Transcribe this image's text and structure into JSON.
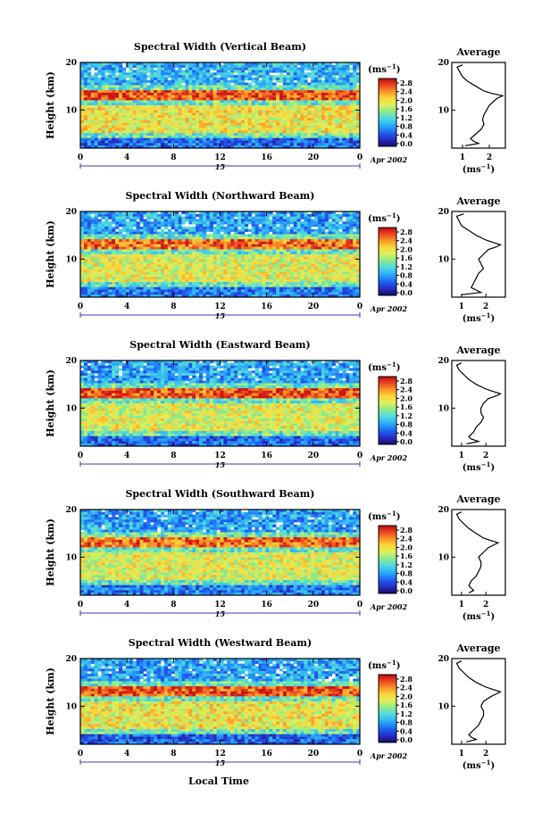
{
  "figure": {
    "x_axis_title": "Local Time",
    "date_label": "Apr 2002",
    "day_label": "15",
    "y_axis_title": "Height (km)",
    "average_title": "Average",
    "units": "(ms",
    "units_exp": "−1",
    "units_close": ")",
    "colorbar_ticks": [
      "2.8",
      "2.4",
      "2.0",
      "1.6",
      "1.2",
      "0.8",
      "0.4",
      "0.0"
    ]
  },
  "chart_data": [
    {
      "type": "heatmap",
      "title": "Spectral Width (Vertical Beam)",
      "xlabel": "",
      "ylabel": "Height (km)",
      "x_ticks": [
        "0",
        "4",
        "8",
        "12",
        "16",
        "20",
        "0"
      ],
      "xlim": [
        0,
        24
      ],
      "ylim": [
        2,
        20
      ],
      "y_ticks": [
        "10",
        "20"
      ],
      "colorbar": {
        "label": "(ms-1)",
        "range": [
          0.0,
          3.0
        ],
        "ticks": [
          0.0,
          0.4,
          0.8,
          1.2,
          1.6,
          2.0,
          2.4,
          2.8
        ]
      },
      "layers": [
        {
          "height_range_km": [
            12,
            14
          ],
          "value_ms": 2.7
        },
        {
          "height_range_km": [
            5,
            11
          ],
          "value_ms": 2.0
        },
        {
          "height_range_km": [
            2,
            4
          ],
          "value_ms": 0.6
        },
        {
          "height_range_km": [
            15,
            20
          ],
          "value_ms": 1.0
        }
      ],
      "profile": {
        "title": "Average",
        "xlabel": "(ms-1)",
        "x_ticks": [
          "1",
          "2"
        ],
        "xlim": [
          0.6,
          2.6
        ],
        "ylim": [
          2,
          20
        ],
        "height": [
          2.5,
          3,
          3.5,
          4,
          5,
          6,
          7,
          8,
          9,
          10,
          11,
          12,
          12.5,
          13,
          13.5,
          14,
          15,
          16,
          17,
          18,
          19,
          19.5
        ],
        "width": [
          1.1,
          1.6,
          1.4,
          1.3,
          1.5,
          1.7,
          1.8,
          1.75,
          1.8,
          1.9,
          2.0,
          2.2,
          2.3,
          2.5,
          2.1,
          1.8,
          1.5,
          1.2,
          1.0,
          0.9,
          0.8,
          1.0
        ]
      }
    },
    {
      "type": "heatmap",
      "title": "Spectral Width (Northward Beam)",
      "xlabel": "",
      "ylabel": "Height (km)",
      "x_ticks": [
        "0",
        "4",
        "8",
        "12",
        "16",
        "20",
        "0"
      ],
      "xlim": [
        0,
        24
      ],
      "ylim": [
        2,
        20
      ],
      "y_ticks": [
        "10",
        "20"
      ],
      "colorbar": {
        "label": "(ms-1)",
        "range": [
          0.0,
          3.0
        ],
        "ticks": [
          0.0,
          0.4,
          0.8,
          1.2,
          1.6,
          2.0,
          2.4,
          2.8
        ]
      },
      "layers": [
        {
          "height_range_km": [
            12,
            14
          ],
          "value_ms": 2.6
        },
        {
          "height_range_km": [
            5,
            11
          ],
          "value_ms": 1.9
        },
        {
          "height_range_km": [
            2,
            4
          ],
          "value_ms": 0.7
        },
        {
          "height_range_km": [
            15,
            20
          ],
          "value_ms": 0.9
        }
      ],
      "profile": {
        "title": "Average",
        "xlabel": "(ms-1)",
        "x_ticks": [
          "1",
          "2"
        ],
        "xlim": [
          0.6,
          2.8
        ],
        "ylim": [
          2,
          20
        ],
        "height": [
          2.5,
          3,
          3.5,
          4,
          5,
          6,
          7,
          8,
          9,
          10,
          11,
          12,
          12.5,
          13,
          13.5,
          14,
          15,
          16,
          17,
          18,
          19,
          19.5
        ],
        "width": [
          1.0,
          1.8,
          1.6,
          1.4,
          1.5,
          1.6,
          1.7,
          1.9,
          1.8,
          1.7,
          1.9,
          2.1,
          2.4,
          2.6,
          2.3,
          2.0,
          1.6,
          1.3,
          1.0,
          0.9,
          0.8,
          1.1
        ]
      }
    },
    {
      "type": "heatmap",
      "title": "Spectral Width (Eastward Beam)",
      "xlabel": "",
      "ylabel": "Height (km)",
      "x_ticks": [
        "0",
        "4",
        "8",
        "12",
        "16",
        "20",
        "0"
      ],
      "xlim": [
        0,
        24
      ],
      "ylim": [
        2,
        20
      ],
      "y_ticks": [
        "10",
        "20"
      ],
      "colorbar": {
        "label": "(ms-1)",
        "range": [
          0.0,
          3.0
        ],
        "ticks": [
          0.0,
          0.4,
          0.8,
          1.2,
          1.6,
          2.0,
          2.4,
          2.8
        ]
      },
      "layers": [
        {
          "height_range_km": [
            12,
            14
          ],
          "value_ms": 2.7
        },
        {
          "height_range_km": [
            5,
            11
          ],
          "value_ms": 1.9
        },
        {
          "height_range_km": [
            2,
            4
          ],
          "value_ms": 0.6
        },
        {
          "height_range_km": [
            15,
            20
          ],
          "value_ms": 0.9
        }
      ],
      "profile": {
        "title": "Average",
        "xlabel": "(ms-1)",
        "x_ticks": [
          "1",
          "2"
        ],
        "xlim": [
          0.6,
          2.8
        ],
        "ylim": [
          2,
          20
        ],
        "height": [
          2.5,
          3,
          3.5,
          4,
          5,
          6,
          7,
          8,
          9,
          10,
          11,
          12,
          12.5,
          13,
          13.5,
          14,
          15,
          16,
          17,
          18,
          19,
          19.5
        ],
        "width": [
          1.2,
          1.7,
          1.4,
          1.3,
          1.5,
          1.6,
          1.8,
          1.9,
          1.8,
          1.8,
          1.9,
          2.1,
          2.4,
          2.6,
          2.3,
          2.0,
          1.6,
          1.3,
          1.1,
          0.9,
          0.8,
          1.0
        ]
      }
    },
    {
      "type": "heatmap",
      "title": "Spectral Width (Southward Beam)",
      "xlabel": "",
      "ylabel": "Height (km)",
      "x_ticks": [
        "0",
        "4",
        "8",
        "12",
        "16",
        "20",
        "0"
      ],
      "xlim": [
        0,
        24
      ],
      "ylim": [
        2,
        20
      ],
      "y_ticks": [
        "10",
        "20"
      ],
      "colorbar": {
        "label": "(ms-1)",
        "range": [
          0.0,
          3.0
        ],
        "ticks": [
          0.0,
          0.4,
          0.8,
          1.2,
          1.6,
          2.0,
          2.4,
          2.8
        ]
      },
      "layers": [
        {
          "height_range_km": [
            12,
            14
          ],
          "value_ms": 2.6
        },
        {
          "height_range_km": [
            5,
            11
          ],
          "value_ms": 1.9
        },
        {
          "height_range_km": [
            2,
            4
          ],
          "value_ms": 0.7
        },
        {
          "height_range_km": [
            15,
            20
          ],
          "value_ms": 0.9
        }
      ],
      "profile": {
        "title": "Average",
        "xlabel": "(ms-1)",
        "x_ticks": [
          "1",
          "2"
        ],
        "xlim": [
          0.6,
          2.8
        ],
        "ylim": [
          2,
          20
        ],
        "height": [
          2.5,
          3,
          3.5,
          4,
          5,
          6,
          7,
          8,
          9,
          10,
          11,
          12,
          12.5,
          13,
          13.5,
          14,
          15,
          16,
          17,
          18,
          19,
          19.5
        ],
        "width": [
          1.3,
          1.5,
          1.4,
          1.3,
          1.4,
          1.6,
          1.7,
          1.8,
          1.8,
          1.7,
          1.9,
          2.1,
          2.3,
          2.5,
          2.2,
          1.9,
          1.6,
          1.3,
          1.1,
          0.9,
          0.8,
          1.0
        ]
      }
    },
    {
      "type": "heatmap",
      "title": "Spectral Width (Westward Beam)",
      "xlabel": "Local Time",
      "ylabel": "Height (km)",
      "x_ticks": [
        "0",
        "4",
        "8",
        "12",
        "16",
        "20",
        "0"
      ],
      "xlim": [
        0,
        24
      ],
      "ylim": [
        2,
        20
      ],
      "y_ticks": [
        "10",
        "20"
      ],
      "colorbar": {
        "label": "(ms-1)",
        "range": [
          0.0,
          3.0
        ],
        "ticks": [
          0.0,
          0.4,
          0.8,
          1.2,
          1.6,
          2.0,
          2.4,
          2.8
        ]
      },
      "layers": [
        {
          "height_range_km": [
            12,
            14
          ],
          "value_ms": 2.7
        },
        {
          "height_range_km": [
            5,
            11
          ],
          "value_ms": 2.0
        },
        {
          "height_range_km": [
            2,
            4
          ],
          "value_ms": 0.6
        },
        {
          "height_range_km": [
            15,
            20
          ],
          "value_ms": 0.9
        }
      ],
      "profile": {
        "title": "Average",
        "xlabel": "(ms-1)",
        "x_ticks": [
          "1",
          "2"
        ],
        "xlim": [
          0.6,
          2.8
        ],
        "ylim": [
          2,
          20
        ],
        "height": [
          2.5,
          3,
          3.5,
          4,
          5,
          6,
          7,
          8,
          9,
          10,
          11,
          12,
          12.5,
          13,
          13.5,
          14,
          15,
          16,
          17,
          18,
          19,
          19.5
        ],
        "width": [
          1.2,
          1.6,
          1.4,
          1.3,
          1.5,
          1.7,
          1.8,
          1.9,
          1.9,
          1.8,
          1.9,
          2.2,
          2.4,
          2.6,
          2.3,
          2.0,
          1.6,
          1.3,
          1.1,
          0.9,
          0.8,
          1.0
        ]
      }
    }
  ]
}
